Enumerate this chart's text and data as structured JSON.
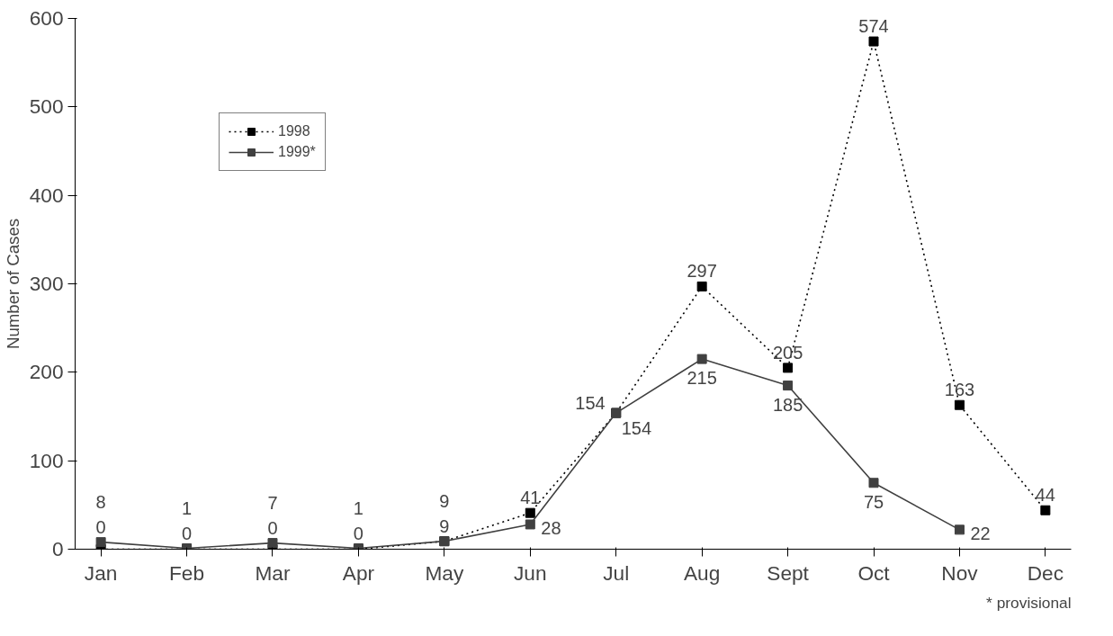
{
  "chart_data": {
    "type": "line",
    "ylabel": "Number of Cases",
    "categories": [
      "Jan",
      "Feb",
      "Mar",
      "Apr",
      "May",
      "Jun",
      "Jul",
      "Aug",
      "Sept",
      "Oct",
      "Nov",
      "Dec"
    ],
    "series": [
      {
        "name": "1998",
        "color": "#000000",
        "line_style": "dotted",
        "values": [
          0,
          0,
          0,
          0,
          9,
          41,
          154,
          297,
          205,
          574,
          163,
          44
        ]
      },
      {
        "name": "1999*",
        "color": "#404040",
        "line_style": "solid",
        "values": [
          8,
          1,
          7,
          1,
          9,
          28,
          154,
          215,
          185,
          75,
          22,
          null
        ]
      }
    ],
    "ylim": [
      0,
      600
    ],
    "yticks": [
      0,
      100,
      200,
      300,
      400,
      500,
      600
    ],
    "grid": false,
    "legend": "top left",
    "marker": "square",
    "data_labels": true,
    "annotations": [
      "* provisional"
    ]
  }
}
